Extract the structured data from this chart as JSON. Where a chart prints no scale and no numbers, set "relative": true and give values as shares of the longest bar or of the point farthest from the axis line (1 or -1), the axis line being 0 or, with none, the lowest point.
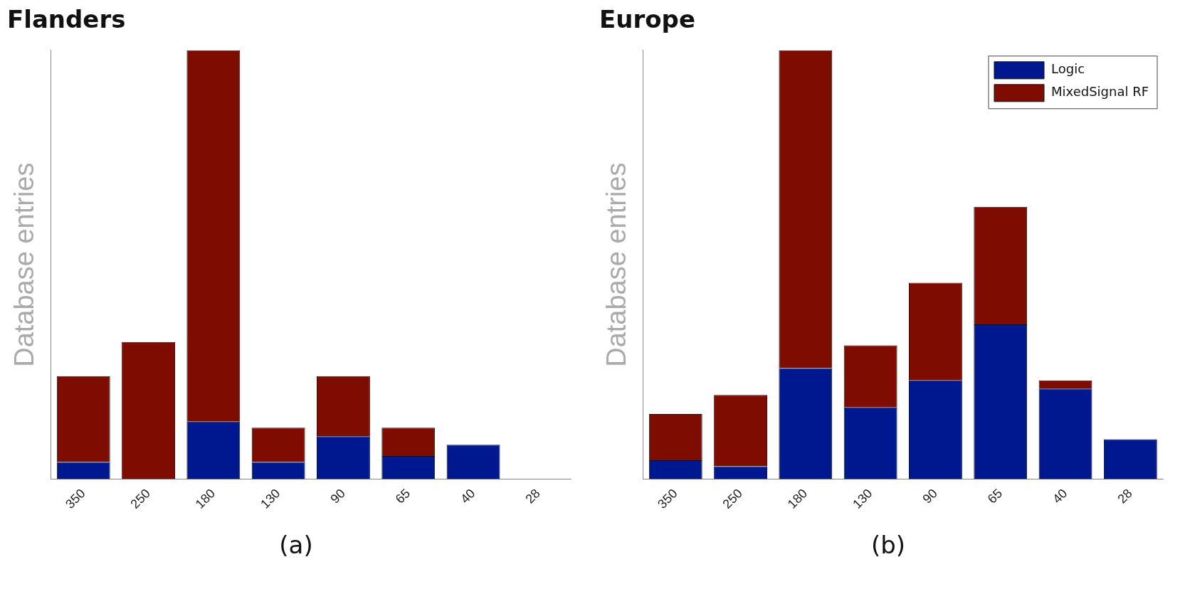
{
  "chart_data": [
    {
      "type": "bar",
      "title": "Flanders",
      "ylabel": "Database entries",
      "relative": true,
      "stacked": true,
      "legend": false,
      "grid": false,
      "categories": [
        "350",
        "250",
        "180",
        "130",
        "90",
        "65",
        "40",
        "28"
      ],
      "series": [
        {
          "color": "#00188f",
          "values": [
            0.04,
            0,
            0.134,
            0.04,
            0.1,
            0.054,
            0.08,
            0
          ]
        },
        {
          "color": "#7f0c00",
          "values": [
            0.2,
            0.32,
            0.866,
            0.08,
            0.14,
            0.066,
            0,
            0
          ]
        }
      ],
      "annotations": [
        "(a)"
      ]
    },
    {
      "type": "bar",
      "title": "Europe",
      "ylabel": "Database entries",
      "relative": true,
      "stacked": true,
      "legend": "top right",
      "grid": false,
      "categories": [
        "350",
        "250",
        "180",
        "130",
        "90",
        "65",
        "40",
        "28"
      ],
      "series": [
        {
          "name": "Logic",
          "color": "#00188f",
          "values": [
            0.044,
            0.03,
            0.259,
            0.167,
            0.23,
            0.361,
            0.211,
            0.093
          ]
        },
        {
          "name": "MixedSignal RF",
          "color": "#7f0c00",
          "values": [
            0.108,
            0.166,
            0.741,
            0.145,
            0.228,
            0.274,
            0.019,
            0
          ]
        }
      ],
      "annotations": [
        "(b)"
      ]
    }
  ]
}
